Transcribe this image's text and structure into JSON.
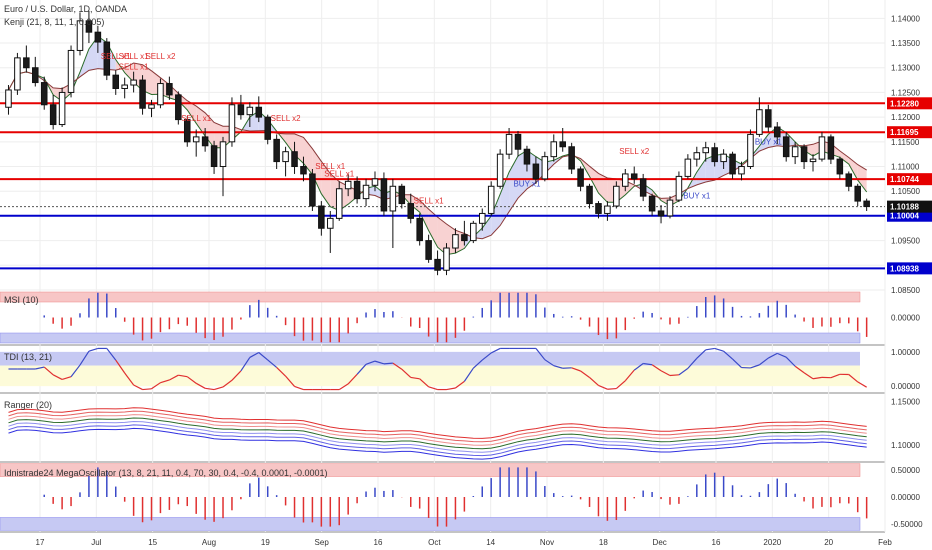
{
  "title": "Euro / U.S. Dollar, 1D, OANDA",
  "indicator_main": "Kenji (21, 8, 11, 1, 0.005)",
  "colors": {
    "up": "#ffffff",
    "down": "#1a1a1a",
    "resistance": "#e60000",
    "support": "#0000cc",
    "panel_red": "#f7c6c6",
    "panel_blue": "#c6c9f3",
    "panel_yellow": "#fdfbd9"
  },
  "chart_data": [
    {
      "type": "candlestick",
      "name": "Euro / U.S. Dollar, 1D, OANDA",
      "x_ticks": [
        "17",
        "Jul",
        "15",
        "Aug",
        "19",
        "Sep",
        "16",
        "Oct",
        "14",
        "Nov",
        "18",
        "Dec",
        "16",
        "2020",
        "20",
        "Feb"
      ],
      "ylim": [
        1.085,
        1.1425
      ],
      "y_ticks": [
        "1.14000",
        "1.13500",
        "1.13000",
        "1.12500",
        "1.12000",
        "1.11500",
        "1.11000",
        "1.10500",
        "1.10000",
        "1.09500",
        "1.09000",
        "1.08500"
      ],
      "price_lines": [
        {
          "value": 1.1228,
          "label": "1.12280",
          "kind": "resistance"
        },
        {
          "value": 1.11695,
          "label": "1.11695",
          "kind": "resistance"
        },
        {
          "value": 1.10744,
          "label": "1.10744",
          "kind": "resistance"
        },
        {
          "value": 1.10004,
          "label": "1.10004",
          "kind": "support"
        },
        {
          "value": 1.08938,
          "label": "1.08938",
          "kind": "support"
        }
      ],
      "last_price": {
        "value": 1.10188,
        "label": "1.10188"
      },
      "signals": [
        {
          "i": 12,
          "price": 1.1318,
          "text": "SELL x1",
          "kind": "sell"
        },
        {
          "i": 14,
          "price": 1.1318,
          "text": "SELL x1",
          "kind": "sell"
        },
        {
          "i": 17,
          "price": 1.1318,
          "text": "SELL x2",
          "kind": "sell"
        },
        {
          "i": 14,
          "price": 1.1296,
          "text": "SELL x1",
          "kind": "sell"
        },
        {
          "i": 21,
          "price": 1.1192,
          "text": "SELL x1",
          "kind": "sell"
        },
        {
          "i": 31,
          "price": 1.1192,
          "text": "SELL x2",
          "kind": "sell"
        },
        {
          "i": 36,
          "price": 1.1095,
          "text": "SELL x1",
          "kind": "sell"
        },
        {
          "i": 37,
          "price": 1.108,
          "text": "SELL x1",
          "kind": "sell"
        },
        {
          "i": 47,
          "price": 1.1025,
          "text": "SELL x1",
          "kind": "sell"
        },
        {
          "i": 70,
          "price": 1.1125,
          "text": "SELL x2",
          "kind": "sell"
        },
        {
          "i": 58,
          "price": 1.106,
          "text": "BUY x1",
          "kind": "buy"
        },
        {
          "i": 77,
          "price": 1.1035,
          "text": "BUY x1",
          "kind": "buy"
        },
        {
          "i": 85,
          "price": 1.1145,
          "text": "BUY x1",
          "kind": "buy"
        }
      ],
      "candles": [
        [
          1.122,
          1.1265,
          1.1205,
          1.1255
        ],
        [
          1.1255,
          1.133,
          1.1245,
          1.132
        ],
        [
          1.132,
          1.1345,
          1.129,
          1.13
        ],
        [
          1.13,
          1.1322,
          1.1262,
          1.127
        ],
        [
          1.127,
          1.1282,
          1.1215,
          1.1225
        ],
        [
          1.1225,
          1.1245,
          1.1175,
          1.1185
        ],
        [
          1.1185,
          1.126,
          1.118,
          1.125
        ],
        [
          1.125,
          1.1345,
          1.124,
          1.1335
        ],
        [
          1.1335,
          1.1412,
          1.1325,
          1.1395
        ],
        [
          1.1395,
          1.1415,
          1.135,
          1.1372
        ],
        [
          1.1372,
          1.1385,
          1.133,
          1.1352
        ],
        [
          1.1352,
          1.136,
          1.1275,
          1.1285
        ],
        [
          1.1285,
          1.1295,
          1.1245,
          1.1258
        ],
        [
          1.1258,
          1.128,
          1.1238,
          1.1265
        ],
        [
          1.1265,
          1.1292,
          1.125,
          1.1275
        ],
        [
          1.1275,
          1.1285,
          1.1205,
          1.1218
        ],
        [
          1.1218,
          1.1235,
          1.12,
          1.1225
        ],
        [
          1.1225,
          1.1278,
          1.1218,
          1.1268
        ],
        [
          1.1268,
          1.1282,
          1.1235,
          1.1245
        ],
        [
          1.1245,
          1.1252,
          1.1185,
          1.1195
        ],
        [
          1.1195,
          1.1202,
          1.114,
          1.115
        ],
        [
          1.115,
          1.1175,
          1.112,
          1.116
        ],
        [
          1.116,
          1.1178,
          1.113,
          1.1142
        ],
        [
          1.1142,
          1.1152,
          1.1085,
          1.11
        ],
        [
          1.11,
          1.116,
          1.104,
          1.115
        ],
        [
          1.115,
          1.124,
          1.114,
          1.1225
        ],
        [
          1.1225,
          1.1245,
          1.1195,
          1.1205
        ],
        [
          1.1205,
          1.123,
          1.118,
          1.122
        ],
        [
          1.122,
          1.1242,
          1.119,
          1.12
        ],
        [
          1.12,
          1.1205,
          1.1145,
          1.1155
        ],
        [
          1.1155,
          1.1165,
          1.1095,
          1.111
        ],
        [
          1.111,
          1.114,
          1.108,
          1.113
        ],
        [
          1.113,
          1.115,
          1.1085,
          1.11
        ],
        [
          1.11,
          1.112,
          1.107,
          1.1085
        ],
        [
          1.1085,
          1.1095,
          1.101,
          1.102
        ],
        [
          1.102,
          1.103,
          1.096,
          1.0975
        ],
        [
          1.0975,
          1.101,
          1.0925,
          1.0995
        ],
        [
          1.0995,
          1.107,
          1.099,
          1.1055
        ],
        [
          1.1055,
          1.1085,
          1.104,
          1.107
        ],
        [
          1.107,
          1.108,
          1.1025,
          1.1035
        ],
        [
          1.1035,
          1.1075,
          1.102,
          1.1062
        ],
        [
          1.1062,
          1.109,
          1.105,
          1.1075
        ],
        [
          1.1075,
          1.1088,
          1.1,
          1.101
        ],
        [
          1.101,
          1.1075,
          1.0935,
          1.106
        ],
        [
          1.106,
          1.1065,
          1.1015,
          1.1025
        ],
        [
          1.1025,
          1.1045,
          1.0985,
          1.0995
        ],
        [
          1.0995,
          1.1005,
          1.094,
          1.095
        ],
        [
          1.095,
          1.0962,
          1.0905,
          1.0912
        ],
        [
          1.0912,
          1.093,
          1.088,
          1.089
        ],
        [
          1.089,
          1.0945,
          1.088,
          1.0935
        ],
        [
          1.0935,
          1.0975,
          1.0925,
          1.0962
        ],
        [
          1.0962,
          1.099,
          1.094,
          1.095
        ],
        [
          1.095,
          1.099,
          1.0945,
          1.0985
        ],
        [
          1.0985,
          1.1015,
          1.097,
          1.1005
        ],
        [
          1.1005,
          1.107,
          1.1,
          1.106
        ],
        [
          1.106,
          1.1135,
          1.1055,
          1.1125
        ],
        [
          1.1125,
          1.1178,
          1.1115,
          1.1165
        ],
        [
          1.1165,
          1.1172,
          1.112,
          1.1135
        ],
        [
          1.1135,
          1.1142,
          1.109,
          1.1105
        ],
        [
          1.1105,
          1.112,
          1.1065,
          1.1075
        ],
        [
          1.1075,
          1.113,
          1.107,
          1.112
        ],
        [
          1.112,
          1.1165,
          1.111,
          1.115
        ],
        [
          1.115,
          1.1178,
          1.113,
          1.114
        ],
        [
          1.114,
          1.1148,
          1.1085,
          1.1095
        ],
        [
          1.1095,
          1.11,
          1.105,
          1.106
        ],
        [
          1.106,
          1.1065,
          1.1015,
          1.1025
        ],
        [
          1.1025,
          1.103,
          1.0995,
          1.1005
        ],
        [
          1.1005,
          1.103,
          1.099,
          1.102
        ],
        [
          1.102,
          1.107,
          1.1015,
          1.106
        ],
        [
          1.106,
          1.1095,
          1.105,
          1.1085
        ],
        [
          1.1085,
          1.11,
          1.1065,
          1.1075
        ],
        [
          1.1075,
          1.1085,
          1.103,
          1.104
        ],
        [
          1.104,
          1.1045,
          1.1,
          1.101
        ],
        [
          1.101,
          1.1022,
          1.0985,
          1.1
        ],
        [
          1.1,
          1.104,
          1.0995,
          1.1032
        ],
        [
          1.1032,
          1.109,
          1.1028,
          1.108
        ],
        [
          1.108,
          1.1125,
          1.1075,
          1.1115
        ],
        [
          1.1115,
          1.114,
          1.11,
          1.1128
        ],
        [
          1.1128,
          1.115,
          1.111,
          1.1138
        ],
        [
          1.1138,
          1.1148,
          1.11,
          1.111
        ],
        [
          1.111,
          1.1135,
          1.1095,
          1.1125
        ],
        [
          1.1125,
          1.113,
          1.1075,
          1.1085
        ],
        [
          1.1085,
          1.111,
          1.1072,
          1.11
        ],
        [
          1.11,
          1.1175,
          1.1095,
          1.1165
        ],
        [
          1.1165,
          1.124,
          1.116,
          1.1215
        ],
        [
          1.1215,
          1.1225,
          1.117,
          1.118
        ],
        [
          1.118,
          1.119,
          1.1145,
          1.116
        ],
        [
          1.116,
          1.117,
          1.111,
          1.112
        ],
        [
          1.112,
          1.115,
          1.1105,
          1.114
        ],
        [
          1.114,
          1.1145,
          1.1095,
          1.111
        ],
        [
          1.111,
          1.1125,
          1.109,
          1.1115
        ],
        [
          1.1115,
          1.117,
          1.111,
          1.116
        ],
        [
          1.116,
          1.1165,
          1.1105,
          1.1115
        ],
        [
          1.1115,
          1.112,
          1.1075,
          1.1085
        ],
        [
          1.1085,
          1.109,
          1.105,
          1.106
        ],
        [
          1.106,
          1.1065,
          1.102,
          1.103
        ],
        [
          1.103,
          1.1035,
          1.101,
          1.1019
        ]
      ]
    },
    {
      "type": "bar",
      "name": "MSI (10)",
      "ylim": [
        -1,
        1
      ],
      "y_ticks": [
        "0.00000"
      ],
      "pattern": "up-blue-down-red"
    },
    {
      "type": "line",
      "name": "TDI (13, 21)",
      "ylim": [
        -0.2,
        1.2
      ],
      "y_ticks": [
        "1.00000",
        "0.00000"
      ]
    },
    {
      "type": "line",
      "name": "Ranger (20)",
      "ylim": [
        1.08,
        1.16
      ],
      "y_ticks": [
        "1.15000",
        "1.10000"
      ]
    },
    {
      "type": "bar",
      "name": "Idnistrade24 MegaOscillator (13, 8, 21, 11, 0.4, 70, 30, 0.4, -0.4, 0.0001, -0.0001)",
      "ylim": [
        -0.65,
        0.65
      ],
      "y_ticks": [
        "0.50000",
        "0.00000",
        "-0.50000"
      ]
    }
  ]
}
